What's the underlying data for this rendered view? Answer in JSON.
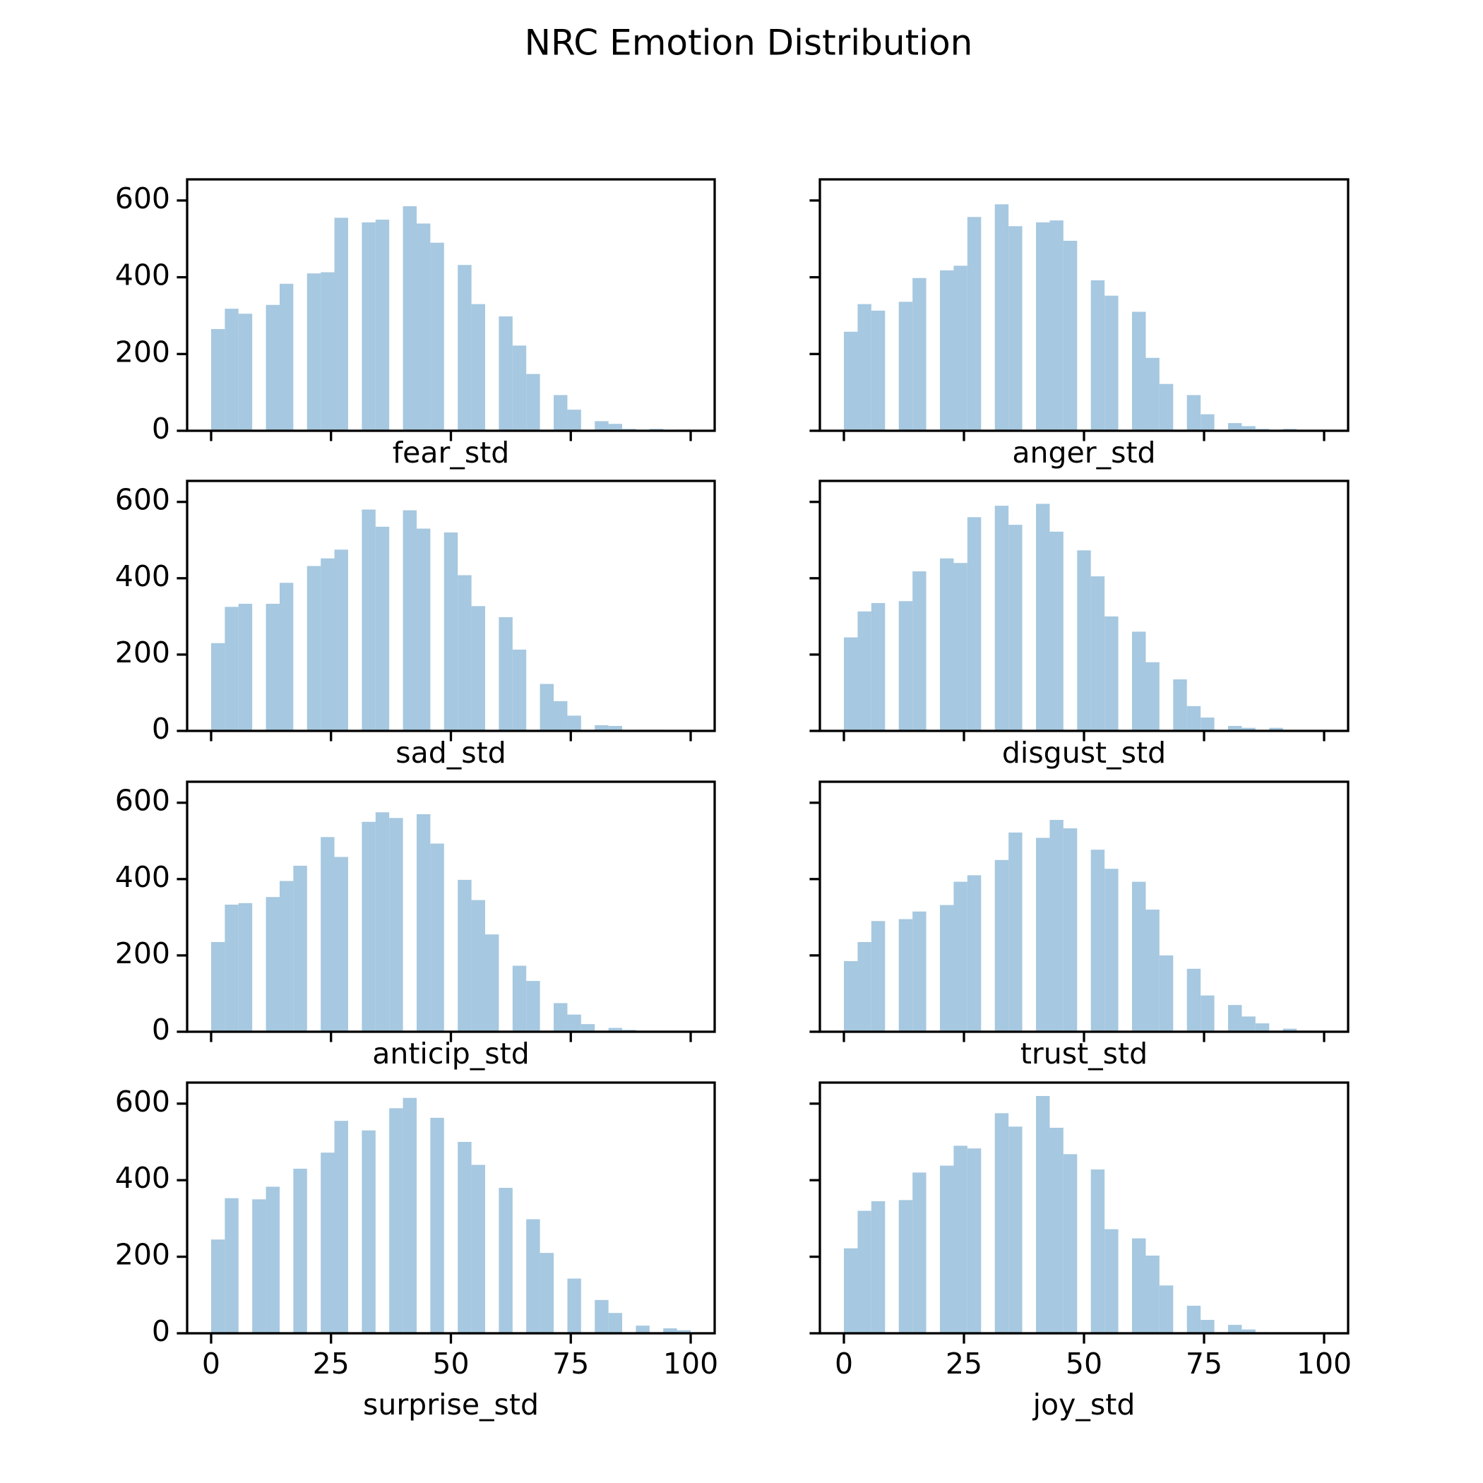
{
  "title": "NRC Emotion Distribution",
  "chart_data": [
    {
      "type": "histogram",
      "xlabel": "fear_std",
      "color": "#a6c8e0",
      "bins": [
        0,
        2.86,
        5.71,
        8.57,
        11.43,
        14.29,
        17.14,
        20,
        22.86,
        25.71,
        28.57,
        31.43,
        34.29,
        37.14,
        40,
        42.86,
        45.71,
        48.57,
        51.43,
        54.29,
        57.14,
        60,
        62.86,
        65.71,
        68.57,
        71.43,
        74.29,
        77.14,
        80,
        82.86,
        85.71,
        88.57,
        91.43,
        94.29,
        97.14,
        100
      ],
      "values": [
        265,
        318,
        305,
        0,
        328,
        383,
        0,
        410,
        413,
        555,
        0,
        543,
        550,
        0,
        585,
        540,
        490,
        0,
        432,
        330,
        0,
        298,
        222,
        148,
        0,
        93,
        55,
        0,
        25,
        18,
        5,
        0,
        5,
        0,
        3
      ],
      "xlim": [
        -5,
        105
      ],
      "ylim": [
        0,
        655
      ],
      "xticks": [
        0,
        25,
        50,
        75,
        100
      ],
      "yticks": [
        0,
        200,
        400,
        600
      ]
    },
    {
      "type": "histogram",
      "xlabel": "anger_std",
      "color": "#a6c8e0",
      "bins": [
        0,
        2.86,
        5.71,
        8.57,
        11.43,
        14.29,
        17.14,
        20,
        22.86,
        25.71,
        28.57,
        31.43,
        34.29,
        37.14,
        40,
        42.86,
        45.71,
        48.57,
        51.43,
        54.29,
        57.14,
        60,
        62.86,
        65.71,
        68.57,
        71.43,
        74.29,
        77.14,
        80,
        82.86,
        85.71,
        88.57,
        91.43,
        94.29,
        97.14,
        100
      ],
      "values": [
        258,
        330,
        313,
        0,
        336,
        398,
        0,
        418,
        430,
        557,
        0,
        590,
        533,
        0,
        543,
        548,
        495,
        0,
        392,
        352,
        0,
        310,
        190,
        122,
        0,
        93,
        43,
        0,
        20,
        12,
        5,
        0,
        5,
        0,
        0
      ],
      "xlim": [
        -5,
        105
      ],
      "ylim": [
        0,
        655
      ],
      "xticks": [
        0,
        25,
        50,
        75,
        100
      ],
      "yticks": [
        0,
        200,
        400,
        600
      ]
    },
    {
      "type": "histogram",
      "xlabel": "sad_std",
      "color": "#a6c8e0",
      "bins": [
        0,
        2.86,
        5.71,
        8.57,
        11.43,
        14.29,
        17.14,
        20,
        22.86,
        25.71,
        28.57,
        31.43,
        34.29,
        37.14,
        40,
        42.86,
        45.71,
        48.57,
        51.43,
        54.29,
        57.14,
        60,
        62.86,
        65.71,
        68.57,
        71.43,
        74.29,
        77.14,
        80,
        82.86,
        85.71,
        88.57,
        91.43,
        94.29,
        97.14,
        100
      ],
      "values": [
        230,
        325,
        333,
        0,
        333,
        388,
        0,
        432,
        452,
        475,
        0,
        580,
        535,
        0,
        578,
        530,
        0,
        520,
        408,
        327,
        0,
        298,
        213,
        0,
        123,
        78,
        40,
        0,
        15,
        13,
        0,
        3,
        3,
        0,
        0
      ],
      "xlim": [
        -5,
        105
      ],
      "ylim": [
        0,
        655
      ],
      "xticks": [
        0,
        25,
        50,
        75,
        100
      ],
      "yticks": [
        0,
        200,
        400,
        600
      ]
    },
    {
      "type": "histogram",
      "xlabel": "disgust_std",
      "color": "#a6c8e0",
      "bins": [
        0,
        2.86,
        5.71,
        8.57,
        11.43,
        14.29,
        17.14,
        20,
        22.86,
        25.71,
        28.57,
        31.43,
        34.29,
        37.14,
        40,
        42.86,
        45.71,
        48.57,
        51.43,
        54.29,
        57.14,
        60,
        62.86,
        65.71,
        68.57,
        71.43,
        74.29,
        77.14,
        80,
        82.86,
        85.71,
        88.57,
        91.43,
        94.29,
        97.14,
        100
      ],
      "values": [
        245,
        313,
        335,
        0,
        340,
        418,
        0,
        452,
        440,
        560,
        0,
        590,
        540,
        0,
        595,
        522,
        0,
        473,
        405,
        300,
        0,
        260,
        180,
        0,
        135,
        65,
        35,
        0,
        13,
        8,
        0,
        8,
        0,
        0,
        0
      ],
      "xlim": [
        -5,
        105
      ],
      "ylim": [
        0,
        655
      ],
      "xticks": [
        0,
        25,
        50,
        75,
        100
      ],
      "yticks": [
        0,
        200,
        400,
        600
      ]
    },
    {
      "type": "histogram",
      "xlabel": "anticip_std",
      "color": "#a6c8e0",
      "bins": [
        0,
        2.86,
        5.71,
        8.57,
        11.43,
        14.29,
        17.14,
        20,
        22.86,
        25.71,
        28.57,
        31.43,
        34.29,
        37.14,
        40,
        42.86,
        45.71,
        48.57,
        51.43,
        54.29,
        57.14,
        60,
        62.86,
        65.71,
        68.57,
        71.43,
        74.29,
        77.14,
        80,
        82.86,
        85.71,
        88.57,
        91.43,
        94.29,
        97.14,
        100
      ],
      "values": [
        235,
        333,
        337,
        0,
        353,
        395,
        435,
        0,
        510,
        458,
        0,
        550,
        575,
        560,
        0,
        570,
        493,
        0,
        398,
        345,
        255,
        0,
        173,
        133,
        0,
        75,
        45,
        20,
        0,
        10,
        5,
        0,
        0,
        0,
        0
      ],
      "xlim": [
        -5,
        105
      ],
      "ylim": [
        0,
        655
      ],
      "xticks": [
        0,
        25,
        50,
        75,
        100
      ],
      "yticks": [
        0,
        200,
        400,
        600
      ]
    },
    {
      "type": "histogram",
      "xlabel": "trust_std",
      "color": "#a6c8e0",
      "bins": [
        0,
        2.86,
        5.71,
        8.57,
        11.43,
        14.29,
        17.14,
        20,
        22.86,
        25.71,
        28.57,
        31.43,
        34.29,
        37.14,
        40,
        42.86,
        45.71,
        48.57,
        51.43,
        54.29,
        57.14,
        60,
        62.86,
        65.71,
        68.57,
        71.43,
        74.29,
        77.14,
        80,
        82.86,
        85.71,
        88.57,
        91.43,
        94.29,
        97.14,
        100
      ],
      "values": [
        185,
        235,
        290,
        0,
        295,
        315,
        0,
        332,
        393,
        410,
        0,
        450,
        522,
        0,
        508,
        555,
        533,
        0,
        477,
        427,
        0,
        393,
        320,
        200,
        0,
        165,
        95,
        0,
        70,
        40,
        22,
        0,
        8,
        3,
        0
      ],
      "xlim": [
        -5,
        105
      ],
      "ylim": [
        0,
        655
      ],
      "xticks": [
        0,
        25,
        50,
        75,
        100
      ],
      "yticks": [
        0,
        200,
        400,
        600
      ]
    },
    {
      "type": "histogram",
      "xlabel": "surprise_std",
      "color": "#a6c8e0",
      "bins": [
        0,
        2.86,
        5.71,
        8.57,
        11.43,
        14.29,
        17.14,
        20,
        22.86,
        25.71,
        28.57,
        31.43,
        34.29,
        37.14,
        40,
        42.86,
        45.71,
        48.57,
        51.43,
        54.29,
        57.14,
        60,
        62.86,
        65.71,
        68.57,
        71.43,
        74.29,
        77.14,
        80,
        82.86,
        85.71,
        88.57,
        91.43,
        94.29,
        97.14,
        100
      ],
      "values": [
        245,
        353,
        0,
        350,
        383,
        0,
        430,
        0,
        472,
        555,
        0,
        530,
        0,
        588,
        615,
        0,
        563,
        0,
        500,
        440,
        0,
        380,
        0,
        298,
        210,
        0,
        143,
        0,
        87,
        53,
        0,
        20,
        0,
        13,
        8
      ],
      "xlim": [
        -5,
        105
      ],
      "ylim": [
        0,
        655
      ],
      "xticks": [
        0,
        25,
        50,
        75,
        100
      ],
      "yticks": [
        0,
        200,
        400,
        600
      ]
    },
    {
      "type": "histogram",
      "xlabel": "joy_std",
      "color": "#a6c8e0",
      "bins": [
        0,
        2.86,
        5.71,
        8.57,
        11.43,
        14.29,
        17.14,
        20,
        22.86,
        25.71,
        28.57,
        31.43,
        34.29,
        37.14,
        40,
        42.86,
        45.71,
        48.57,
        51.43,
        54.29,
        57.14,
        60,
        62.86,
        65.71,
        68.57,
        71.43,
        74.29,
        77.14,
        80,
        82.86,
        85.71,
        88.57,
        91.43,
        94.29,
        97.14,
        100
      ],
      "values": [
        222,
        320,
        345,
        0,
        348,
        420,
        0,
        438,
        490,
        483,
        0,
        575,
        540,
        0,
        620,
        537,
        468,
        0,
        428,
        272,
        0,
        248,
        203,
        125,
        0,
        72,
        35,
        0,
        22,
        10,
        3,
        0,
        0,
        0,
        0
      ],
      "xlim": [
        -5,
        105
      ],
      "ylim": [
        0,
        655
      ],
      "xticks": [
        0,
        25,
        50,
        75,
        100
      ],
      "yticks": [
        0,
        200,
        400,
        600
      ]
    }
  ]
}
